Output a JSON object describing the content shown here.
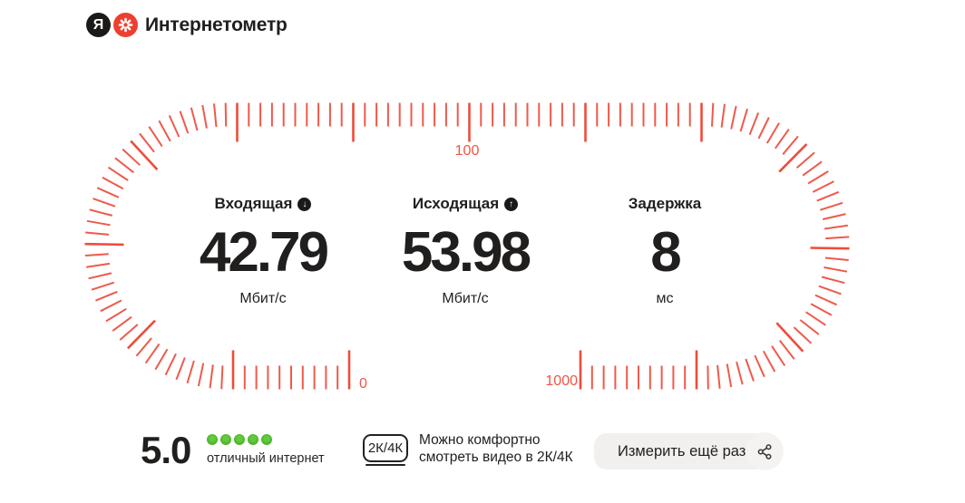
{
  "colors": {
    "red": "#ee4c3c",
    "red-label": "#f05546",
    "green": "#4db52b",
    "ink": "#211f1e",
    "surface": "#f1f0ee"
  },
  "header": {
    "logo_letter": "Я",
    "title": "Интернетометр"
  },
  "gauge": {
    "top_label": "100",
    "start_label": "0",
    "end_label": "1000"
  },
  "metrics": [
    {
      "label": "Входящая",
      "arrow": "↓",
      "value": "42.79",
      "unit": "Мбит/с"
    },
    {
      "label": "Исходящая",
      "arrow": "↑",
      "value": "53.98",
      "unit": "Мбит/с"
    },
    {
      "label": "Задержка",
      "value": "8",
      "unit": "мс"
    }
  ],
  "rating": {
    "score": "5.0",
    "dots": 5,
    "caption": "отличный интернет"
  },
  "quality": {
    "badge_label": "2К/4К",
    "line1": "Можно комфортно",
    "line2": "смотреть видео в 2К/4К"
  },
  "actions": {
    "measure_again_label": "Измерить ещё раз"
  }
}
